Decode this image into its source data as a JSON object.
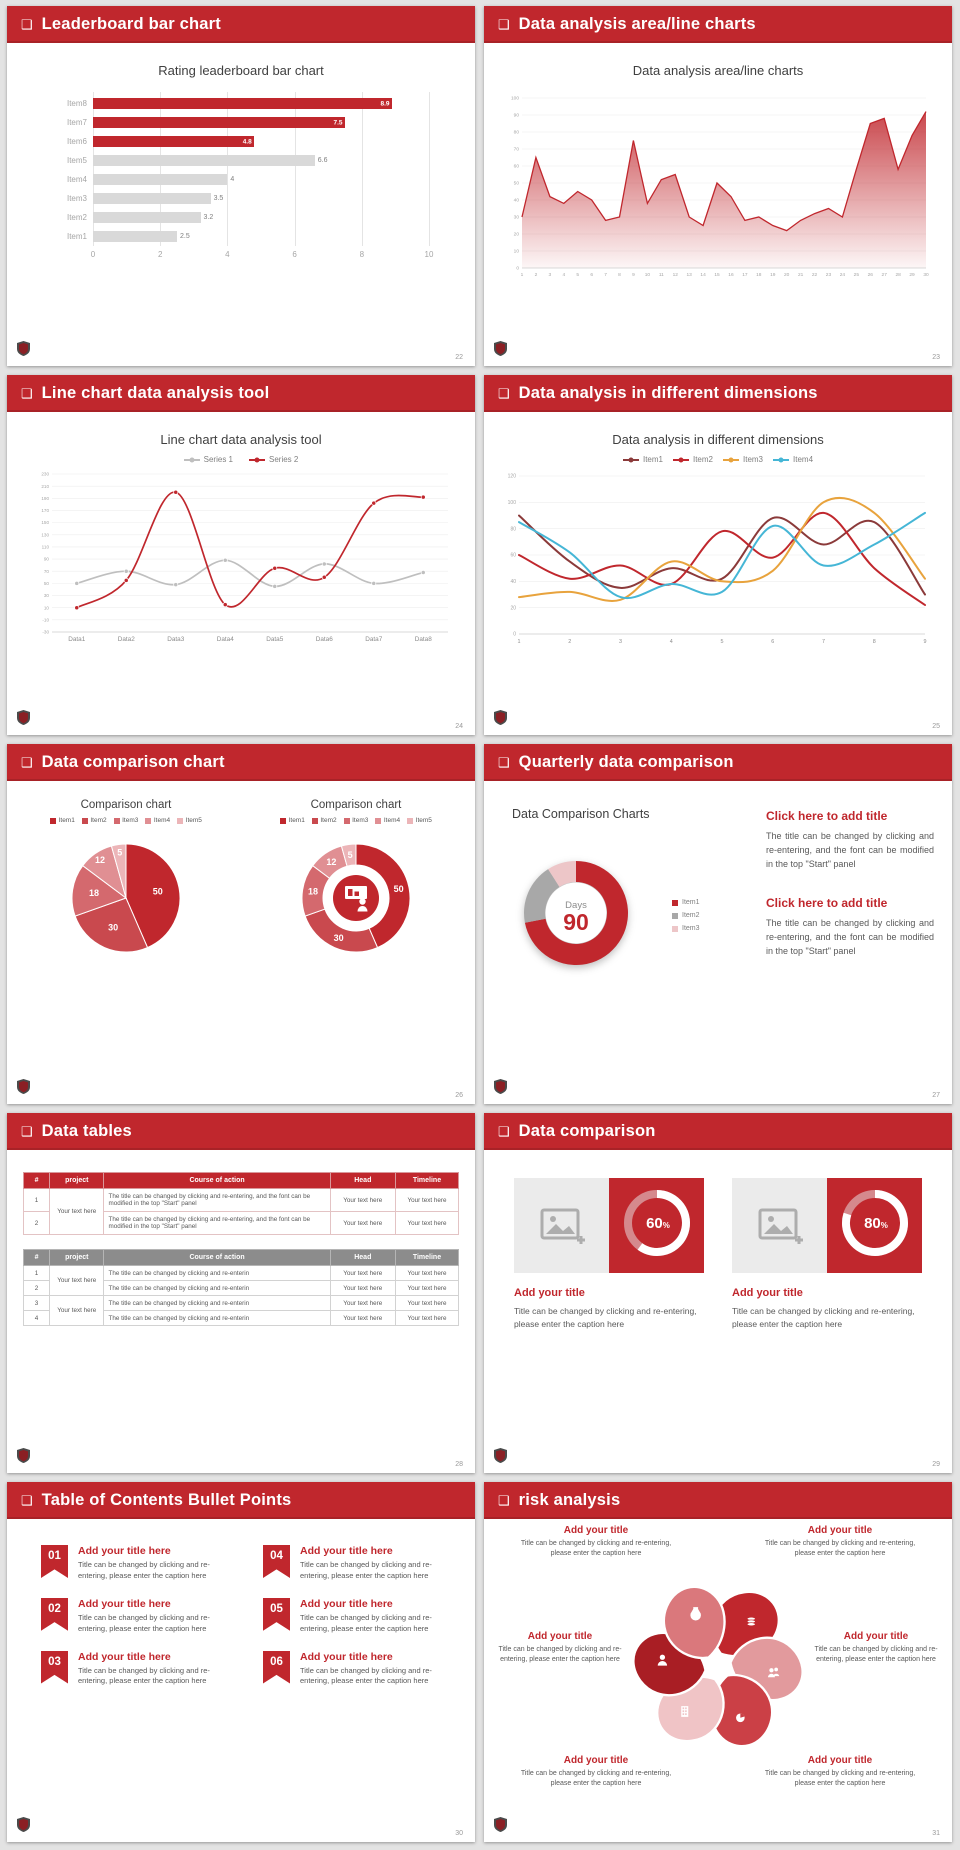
{
  "palette": {
    "accent": "#C0272D",
    "accent_dark": "#9E1F24",
    "bar_gray": "#D9D9D9",
    "table2_header": "#8C8C8C",
    "series_gray": "#BFBFBF",
    "orange": "#E8A33D",
    "cyan": "#45B6D6",
    "dark_red": "#8B3A3A",
    "text_dark": "#404040",
    "text_body": "#595959",
    "text_muted": "#A6A6A6"
  },
  "icons": {
    "header_bullet": "❑"
  },
  "slides": [
    {
      "header": "Leaderboard bar chart",
      "page": "22",
      "chart_title": "Rating leaderboard bar chart",
      "chart_data": {
        "type": "bar",
        "orientation": "horizontal",
        "title": "Rating leaderboard bar chart",
        "categories": [
          "Item1",
          "Item2",
          "Item3",
          "Item4",
          "Item5",
          "Item6",
          "Item7",
          "Item8"
        ],
        "values": [
          2.5,
          3.2,
          3.5,
          4,
          6.6,
          4.8,
          7.5,
          8.9
        ],
        "bar_colors": [
          "gray",
          "gray",
          "gray",
          "gray",
          "gray",
          "red",
          "red",
          "red"
        ],
        "xlim": [
          0,
          10
        ],
        "xticks": [
          0,
          2,
          4,
          6,
          8,
          10
        ]
      }
    },
    {
      "header": "Data analysis area/line charts",
      "page": "23",
      "chart_title": "Data analysis area/line charts",
      "chart_data": {
        "type": "area",
        "title": "Data analysis area/line charts",
        "x": [
          1,
          2,
          3,
          4,
          5,
          6,
          7,
          8,
          9,
          10,
          11,
          12,
          13,
          14,
          15,
          16,
          17,
          18,
          19,
          20,
          21,
          22,
          23,
          24,
          25,
          26,
          27,
          28,
          29,
          30
        ],
        "values": [
          30,
          65,
          42,
          38,
          45,
          40,
          28,
          30,
          75,
          38,
          52,
          55,
          30,
          25,
          50,
          42,
          28,
          30,
          25,
          22,
          28,
          32,
          35,
          30,
          58,
          85,
          88,
          58,
          78,
          92
        ],
        "ylim": [
          0,
          100
        ],
        "yticks": [
          100,
          90,
          80,
          70,
          60,
          50,
          40,
          30,
          20,
          10,
          0
        ]
      }
    },
    {
      "header": "Line chart data analysis tool",
      "page": "24",
      "chart_title": "Line chart data analysis tool",
      "chart_data": {
        "type": "line",
        "title": "Line chart data analysis tool",
        "categories": [
          "Data1",
          "Data2",
          "Data3",
          "Data4",
          "Data5",
          "Data6",
          "Data7",
          "Data8"
        ],
        "series": [
          {
            "name": "Series 1",
            "color": "#BFBFBF",
            "values": [
              50,
              70,
              48,
              88,
              45,
              82,
              50,
              68
            ]
          },
          {
            "name": "Series 2",
            "color": "#C0272D",
            "values": [
              10,
              55,
              200,
              15,
              75,
              60,
              182,
              192
            ]
          }
        ],
        "ylim": [
          -30,
          230
        ],
        "yticks": [
          230,
          210,
          190,
          170,
          150,
          130,
          110,
          90,
          70,
          50,
          30,
          10,
          -10,
          -30
        ]
      }
    },
    {
      "header": "Data analysis in different dimensions",
      "page": "25",
      "chart_title": "Data analysis in different dimensions",
      "chart_data": {
        "type": "line",
        "title": "Data analysis in different dimensions",
        "x": [
          1,
          2,
          3,
          4,
          5,
          6,
          7,
          8,
          9
        ],
        "series": [
          {
            "name": "Item1",
            "color": "#8B3A3A",
            "values": [
              90,
              55,
              35,
              50,
              42,
              88,
              68,
              85,
              30
            ]
          },
          {
            "name": "Item2",
            "color": "#C0272D",
            "values": [
              60,
              42,
              52,
              38,
              78,
              58,
              92,
              50,
              22
            ]
          },
          {
            "name": "Item3",
            "color": "#E8A33D",
            "values": [
              28,
              32,
              26,
              55,
              40,
              48,
              100,
              92,
              42
            ]
          },
          {
            "name": "Item4",
            "color": "#45B6D6",
            "values": [
              85,
              62,
              28,
              38,
              32,
              82,
              52,
              68,
              92
            ]
          }
        ],
        "ylim": [
          0,
          120
        ],
        "yticks": [
          0,
          20,
          40,
          60,
          80,
          100,
          120
        ]
      }
    },
    {
      "header": "Data comparison chart",
      "page": "26",
      "chart_data": [
        {
          "type": "pie",
          "title": "Comparison chart",
          "labels": [
            "Item1",
            "Item2",
            "Item3",
            "Item4",
            "Item5"
          ],
          "values": [
            50,
            30,
            18,
            12,
            5
          ],
          "colors": [
            "#C0272D",
            "#C9494E",
            "#D4696E",
            "#E08F93",
            "#ECB5B8"
          ]
        },
        {
          "type": "donut",
          "title": "Comparison chart",
          "labels": [
            "Item1",
            "Item2",
            "Item3",
            "Item4",
            "Item5"
          ],
          "values": [
            50,
            30,
            18,
            12,
            5
          ],
          "colors": [
            "#C0272D",
            "#C9494E",
            "#D4696E",
            "#E08F93",
            "#ECB5B8"
          ],
          "center_icon": "presenter-icon"
        }
      ]
    },
    {
      "header": "Quarterly data comparison",
      "page": "27",
      "chart_title": "Data Comparison Charts",
      "chart_data": {
        "type": "donut",
        "center_label": "Days",
        "center_value": "90",
        "segments": [
          {
            "label": "Item1",
            "value": 72,
            "color": "#C0272D"
          },
          {
            "label": "Item2",
            "value": 19,
            "color": "#A8A8A8"
          },
          {
            "label": "Item3",
            "value": 9,
            "color": "#EDC6C8"
          }
        ]
      },
      "blocks": [
        {
          "title": "Click here to add title",
          "body": "The title can be changed by clicking and re-entering, and the font can be modified in the top \"Start\" panel"
        },
        {
          "title": "Click here to add title",
          "body": "The title can be changed by clicking and re-entering, and the font can be modified in the top \"Start\" panel"
        }
      ]
    },
    {
      "header": "Data tables",
      "page": "28",
      "table1": {
        "columns": [
          "#",
          "project",
          "Course of action",
          "Head",
          "Timeline"
        ],
        "project": "Your text here",
        "rows": [
          {
            "num": "1",
            "action": "The title can be changed by clicking and re-entering, and the font can be modified in the top \"Start\" panel",
            "head": "Your text here",
            "timeline": "Your text here"
          },
          {
            "num": "2",
            "action": "The title can be changed by clicking and re-entering, and the font can be modified in the top \"Start\" panel",
            "head": "Your text here",
            "timeline": "Your text here"
          }
        ]
      },
      "table2": {
        "columns": [
          "#",
          "project",
          "Course of action",
          "Head",
          "Timeline"
        ],
        "projects": [
          "Your text here",
          "Your text here"
        ],
        "rows": [
          {
            "num": "1",
            "action": "The title can be changed by clicking and re-enterin",
            "head": "Your text here",
            "timeline": "Your text here"
          },
          {
            "num": "2",
            "action": "The title can be changed by clicking and re-enterin",
            "head": "Your text here",
            "timeline": "Your text here"
          },
          {
            "num": "3",
            "action": "The title can be changed by clicking and re-enterin",
            "head": "Your text here",
            "timeline": "Your text here"
          },
          {
            "num": "4",
            "action": "The title can be changed by clicking and re-enterin",
            "head": "Your text here",
            "timeline": "Your text here"
          }
        ]
      }
    },
    {
      "header": "Data comparison",
      "page": "29",
      "cards": [
        {
          "percent": 60,
          "title": "Add your title",
          "body": "Title can be changed by clicking and re-entering, please enter the caption here"
        },
        {
          "percent": 80,
          "title": "Add your title",
          "body": "Title can be changed by clicking and re-entering, please enter the caption here"
        }
      ]
    },
    {
      "header": "Table of Contents Bullet Points",
      "page": "30",
      "items": [
        {
          "num": "01",
          "title": "Add your title here",
          "body": "Title can be changed by clicking and re-entering, please enter the caption here"
        },
        {
          "num": "02",
          "title": "Add your title here",
          "body": "Title can be changed by clicking and re-entering, please enter the caption here"
        },
        {
          "num": "03",
          "title": "Add your title here",
          "body": "Title can be changed by clicking and re-entering, please enter the caption here"
        },
        {
          "num": "04",
          "title": "Add your title here",
          "body": "Title can be changed by clicking and re-entering, please enter the caption here"
        },
        {
          "num": "05",
          "title": "Add your title here",
          "body": "Title can be changed by clicking and re-entering, please enter the caption here"
        },
        {
          "num": "06",
          "title": "Add your title here",
          "body": "Title can be changed by clicking and re-entering, please enter the caption here"
        }
      ]
    },
    {
      "header": "risk analysis",
      "page": "31",
      "wheel_icons": [
        "coins",
        "users",
        "pie-chart",
        "building",
        "user",
        "money-bag"
      ],
      "items": [
        {
          "title": "Add your title",
          "body": "Title can be changed by clicking and re-entering, please enter the caption here"
        },
        {
          "title": "Add your title",
          "body": "Title can be changed by clicking and re-entering, please enter the caption here"
        },
        {
          "title": "Add your title",
          "body": "Title can be changed by clicking and re-entering, please enter the caption here"
        },
        {
          "title": "Add your title",
          "body": "Title can be changed by clicking and re-entering, please enter the caption here"
        },
        {
          "title": "Add your title",
          "body": "Title can be changed by clicking and re-entering, please enter the caption here"
        },
        {
          "title": "Add your title",
          "body": "Title can be changed by clicking and re-entering, please enter the caption here"
        }
      ]
    }
  ]
}
